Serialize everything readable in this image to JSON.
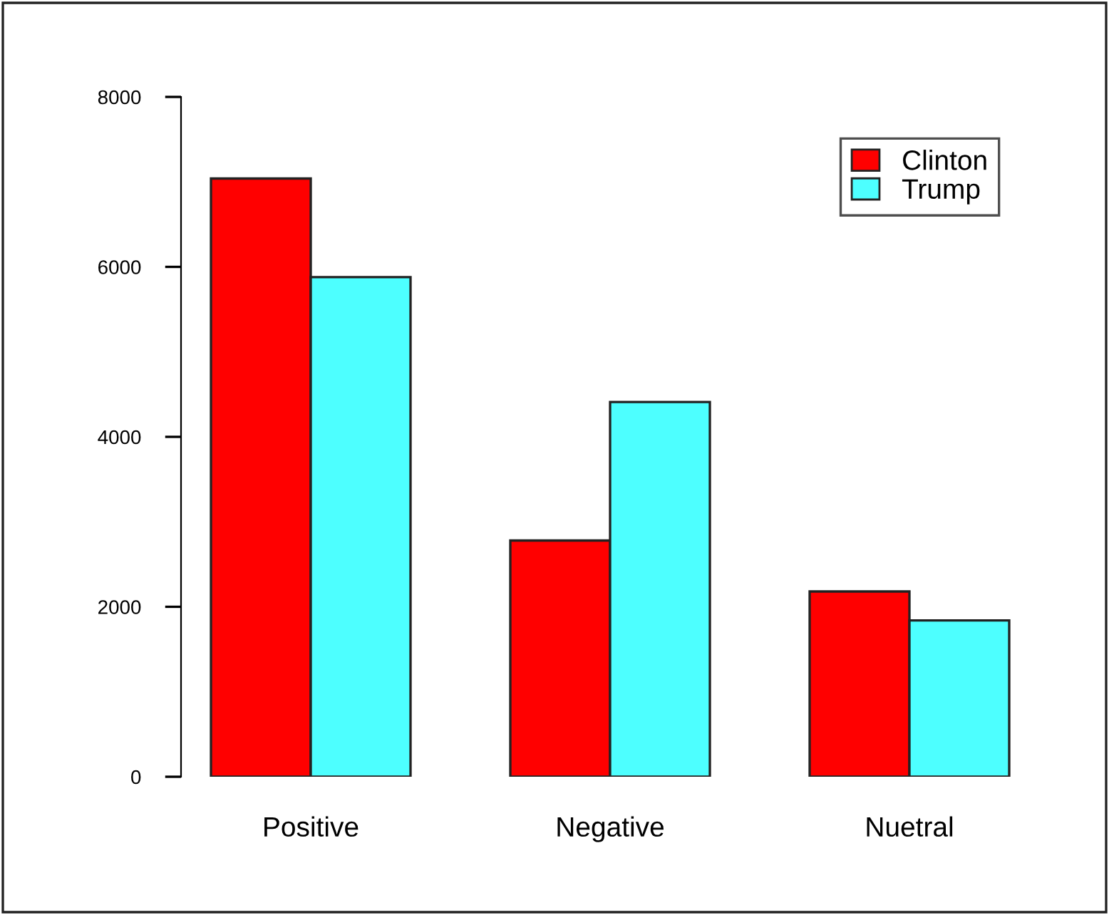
{
  "chart_data": {
    "type": "bar",
    "categories": [
      "Positive",
      "Negative",
      "Nuetral"
    ],
    "series": [
      {
        "name": "Clinton",
        "color": "#ff0000",
        "values": [
          7040,
          2780,
          2180
        ]
      },
      {
        "name": "Trump",
        "color": "#4dffff",
        "values": [
          5880,
          4410,
          1840
        ]
      }
    ],
    "ylim": [
      0,
      8000
    ],
    "yticks": [
      0,
      2000,
      4000,
      6000,
      8000
    ],
    "grid": false,
    "legend": "top right"
  }
}
